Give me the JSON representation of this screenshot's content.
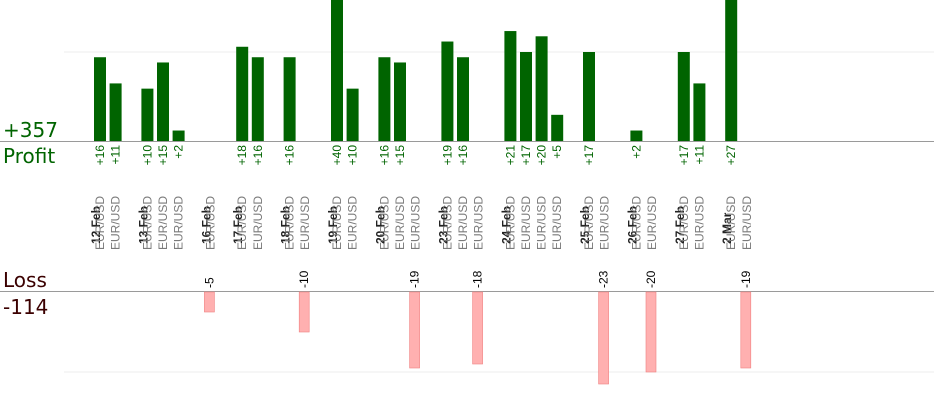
{
  "profit": {
    "label": "Profit",
    "total": "+357"
  },
  "loss": {
    "label": "Loss",
    "total": "-114"
  },
  "colors": {
    "profit": "#006400",
    "loss": "#ffb0b0",
    "loss_edge": "#f08080",
    "date_text": "#222222",
    "pair_text": "#7a7a7a"
  },
  "chart_data": {
    "type": "bar",
    "title": "",
    "days": [
      {
        "date": "12 Feb",
        "trades": [
          {
            "pair": "EUR/USD",
            "value": 16
          },
          {
            "pair": "EUR/USD",
            "value": 11
          }
        ]
      },
      {
        "date": "13 Feb",
        "trades": [
          {
            "pair": "EUR/USD",
            "value": 10
          },
          {
            "pair": "EUR/USD",
            "value": 15
          },
          {
            "pair": "EUR/USD",
            "value": 2
          }
        ]
      },
      {
        "date": "16 Feb",
        "trades": [
          {
            "pair": "EUR/USD",
            "value": -5
          }
        ]
      },
      {
        "date": "17 Feb",
        "trades": [
          {
            "pair": "EUR/USD",
            "value": 18
          },
          {
            "pair": "EUR/USD",
            "value": 16
          }
        ]
      },
      {
        "date": "18 Feb",
        "trades": [
          {
            "pair": "EUR/USD",
            "value": 16
          },
          {
            "pair": "EUR/USD",
            "value": -10
          }
        ]
      },
      {
        "date": "19 Feb",
        "trades": [
          {
            "pair": "EUR/USD",
            "value": 40
          },
          {
            "pair": "EUR/USD",
            "value": 10
          }
        ]
      },
      {
        "date": "20 Feb",
        "trades": [
          {
            "pair": "EUR/USD",
            "value": 16
          },
          {
            "pair": "EUR/USD",
            "value": 15
          },
          {
            "pair": "EUR/USD",
            "value": -19
          }
        ]
      },
      {
        "date": "23 Feb",
        "trades": [
          {
            "pair": "EUR/USD",
            "value": 19
          },
          {
            "pair": "EUR/USD",
            "value": 16
          },
          {
            "pair": "EUR/USD",
            "value": -18
          }
        ]
      },
      {
        "date": "24 Feb",
        "trades": [
          {
            "pair": "EUR/USD",
            "value": 21
          },
          {
            "pair": "EUR/USD",
            "value": 17
          },
          {
            "pair": "EUR/USD",
            "value": 20
          },
          {
            "pair": "EUR/USD",
            "value": 5
          }
        ]
      },
      {
        "date": "25 Feb",
        "trades": [
          {
            "pair": "EUR/USD",
            "value": 17
          },
          {
            "pair": "EUR/USD",
            "value": -23
          }
        ]
      },
      {
        "date": "26 Feb",
        "trades": [
          {
            "pair": "EUR/USD",
            "value": 2
          },
          {
            "pair": "EUR/USD",
            "value": -20
          }
        ]
      },
      {
        "date": "27 Feb",
        "trades": [
          {
            "pair": "EUR/USD",
            "value": 17
          },
          {
            "pair": "EUR/USD",
            "value": 11
          }
        ]
      },
      {
        "date": "2 Mar",
        "trades": [
          {
            "pair": "EUR/USD",
            "value": 27
          },
          {
            "pair": "EUR/USD",
            "value": -19
          }
        ]
      }
    ],
    "profit_axis_range": [
      0,
      17
    ],
    "loss_axis_range": [
      -20,
      0
    ],
    "grid": true,
    "legend": "none"
  }
}
